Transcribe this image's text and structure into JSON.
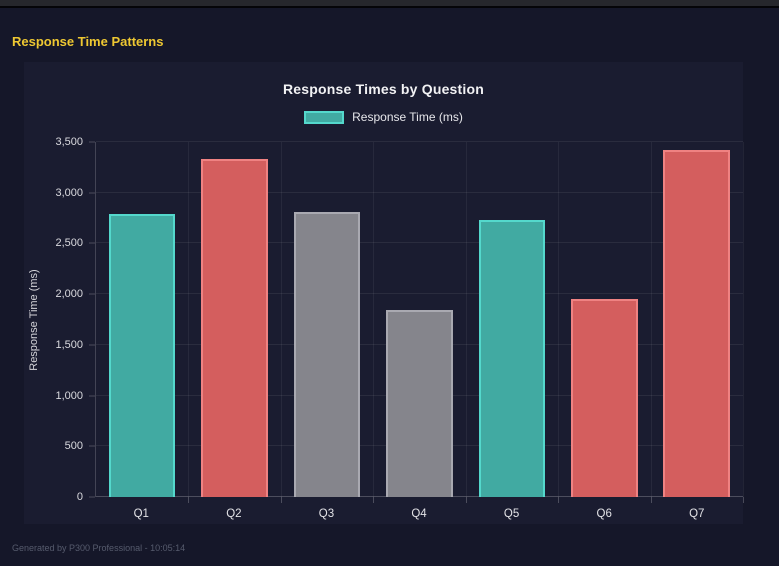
{
  "page": {
    "heading": "Response Time Patterns",
    "footer": "Generated by P300 Professional - 10:05:14"
  },
  "colors": {
    "background": "#151729",
    "panel": "#1a1c30",
    "heading": "#eec832",
    "teal": {
      "fill": "#41aaa2",
      "border": "#54d8cc"
    },
    "red": {
      "fill": "#d45e5e",
      "border": "#ef8282"
    },
    "gray": {
      "fill": "#85858c",
      "border": "#a9a9b1"
    }
  },
  "chart_data": {
    "type": "bar",
    "title": "Response Times by Question",
    "legend": [
      {
        "label": "Response Time (ms)",
        "color_key": "teal"
      }
    ],
    "legend_position": "top",
    "categories": [
      "Q1",
      "Q2",
      "Q3",
      "Q4",
      "Q5",
      "Q6",
      "Q7"
    ],
    "series": [
      {
        "name": "Response Time (ms)",
        "values": [
          2790,
          3330,
          2810,
          1840,
          2730,
          1950,
          3420
        ]
      }
    ],
    "bar_color_keys": [
      "teal",
      "red",
      "gray",
      "gray",
      "teal",
      "red",
      "red"
    ],
    "xlabel": "",
    "ylabel": "Response Time (ms)",
    "ylim": [
      0,
      3500
    ],
    "ytick_step": 500,
    "ytick_labels": [
      "0",
      "500",
      "1,000",
      "1,500",
      "2,000",
      "2,500",
      "3,000",
      "3,500"
    ],
    "grid": true
  }
}
